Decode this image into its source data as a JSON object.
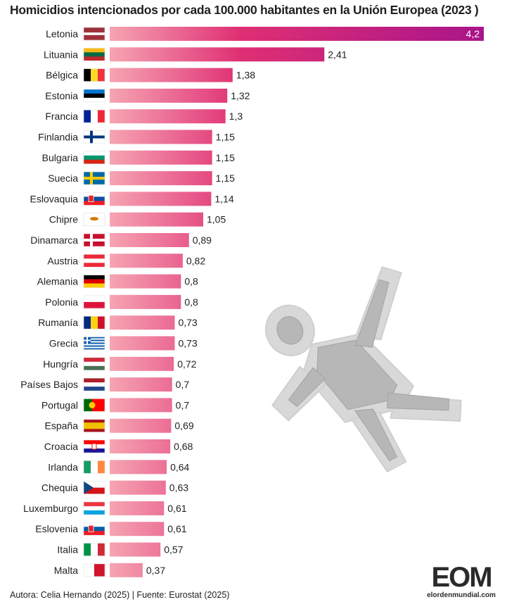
{
  "chart_data": {
    "type": "bar",
    "orientation": "horizontal",
    "title": "Homicidios intencionados por cada 100.000 habitantes en la Unión Europea (2023 )",
    "categories": [
      "Letonia",
      "Lituania",
      "Bélgica",
      "Estonia",
      "Francia",
      "Finlandia",
      "Bulgaria",
      "Suecia",
      "Eslovaquia",
      "Chipre",
      "Dinamarca",
      "Austria",
      "Alemania",
      "Polonia",
      "Rumanía",
      "Grecia",
      "Hungría",
      "Países Bajos",
      "Portugal",
      "España",
      "Croacia",
      "Irlanda",
      "Chequia",
      "Luxemburgo",
      "Eslovenia",
      "Italia",
      "Malta"
    ],
    "values": [
      4.2,
      2.41,
      1.38,
      1.32,
      1.3,
      1.15,
      1.15,
      1.15,
      1.14,
      1.05,
      0.89,
      0.82,
      0.8,
      0.8,
      0.73,
      0.73,
      0.72,
      0.7,
      0.7,
      0.69,
      0.68,
      0.64,
      0.63,
      0.61,
      0.61,
      0.57,
      0.37
    ],
    "value_labels": [
      "4,2",
      "2,41",
      "1,38",
      "1,32",
      "1,3",
      "1,15",
      "1,15",
      "1,15",
      "1,14",
      "1,05",
      "0,89",
      "0,82",
      "0,8",
      "0,8",
      "0,73",
      "0,73",
      "0,72",
      "0,7",
      "0,7",
      "0,69",
      "0,68",
      "0,64",
      "0,63",
      "0,61",
      "0,61",
      "0,57",
      "0,37"
    ],
    "xlim": [
      0,
      4.2
    ],
    "grid": false,
    "legend": "none",
    "colors": {
      "bar_low": "#f49aab",
      "bar_high": "#c8116e",
      "bar_top": "#8e2a9c"
    },
    "flags": [
      {
        "kind": "h",
        "c": [
          "#9e3039",
          "#ffffff",
          "#9e3039"
        ],
        "w": [
          2,
          1,
          2
        ]
      },
      {
        "kind": "h",
        "c": [
          "#fdb913",
          "#006a44",
          "#c1272d"
        ]
      },
      {
        "kind": "v",
        "c": [
          "#000000",
          "#fdda24",
          "#ef3340"
        ]
      },
      {
        "kind": "h",
        "c": [
          "#0072ce",
          "#000000",
          "#ffffff"
        ]
      },
      {
        "kind": "v",
        "c": [
          "#002395",
          "#ffffff",
          "#ed2939"
        ]
      },
      {
        "kind": "nordic",
        "c": [
          "#ffffff",
          "#003580"
        ]
      },
      {
        "kind": "h",
        "c": [
          "#ffffff",
          "#00966e",
          "#d62612"
        ]
      },
      {
        "kind": "nordic",
        "c": [
          "#006aa7",
          "#fecc00"
        ]
      },
      {
        "kind": "h",
        "c": [
          "#ffffff",
          "#0b4ea2",
          "#ee1c25"
        ],
        "emblem": "shield"
      },
      {
        "kind": "cyprus",
        "c": [
          "#ffffff",
          "#d57800"
        ]
      },
      {
        "kind": "nordic",
        "c": [
          "#c8102e",
          "#ffffff"
        ]
      },
      {
        "kind": "h",
        "c": [
          "#ed2939",
          "#ffffff",
          "#ed2939"
        ]
      },
      {
        "kind": "h",
        "c": [
          "#000000",
          "#dd0000",
          "#ffce00"
        ]
      },
      {
        "kind": "h",
        "c": [
          "#ffffff",
          "#dc143c"
        ]
      },
      {
        "kind": "v",
        "c": [
          "#002b7f",
          "#fcd116",
          "#ce1126"
        ]
      },
      {
        "kind": "greece",
        "c": [
          "#0d5eaf",
          "#ffffff"
        ]
      },
      {
        "kind": "h",
        "c": [
          "#ce2939",
          "#ffffff",
          "#477050"
        ]
      },
      {
        "kind": "h",
        "c": [
          "#ae1c28",
          "#ffffff",
          "#21468b"
        ]
      },
      {
        "kind": "portugal",
        "c": [
          "#006600",
          "#ff0000"
        ]
      },
      {
        "kind": "h",
        "c": [
          "#aa151b",
          "#f1bf00",
          "#aa151b"
        ],
        "w": [
          1,
          2,
          1
        ]
      },
      {
        "kind": "h",
        "c": [
          "#ff0000",
          "#ffffff",
          "#171796"
        ],
        "emblem": "checker"
      },
      {
        "kind": "v",
        "c": [
          "#169b62",
          "#ffffff",
          "#ff883e"
        ]
      },
      {
        "kind": "czech",
        "c": [
          "#ffffff",
          "#d7141a",
          "#11457e"
        ]
      },
      {
        "kind": "h",
        "c": [
          "#ef3340",
          "#ffffff",
          "#00a3e0"
        ]
      },
      {
        "kind": "h",
        "c": [
          "#ffffff",
          "#005da4",
          "#ed1c24"
        ],
        "emblem": "shield"
      },
      {
        "kind": "v",
        "c": [
          "#009246",
          "#ffffff",
          "#ce2b37"
        ]
      },
      {
        "kind": "v",
        "c": [
          "#ffffff",
          "#cf142b"
        ]
      }
    ]
  },
  "footer": {
    "credit": "Autora: Celia Hernando (2025) | Fuente: Eurostat (2025)",
    "logo_text": "EOM",
    "logo_sub": "elordenmundial.com"
  }
}
